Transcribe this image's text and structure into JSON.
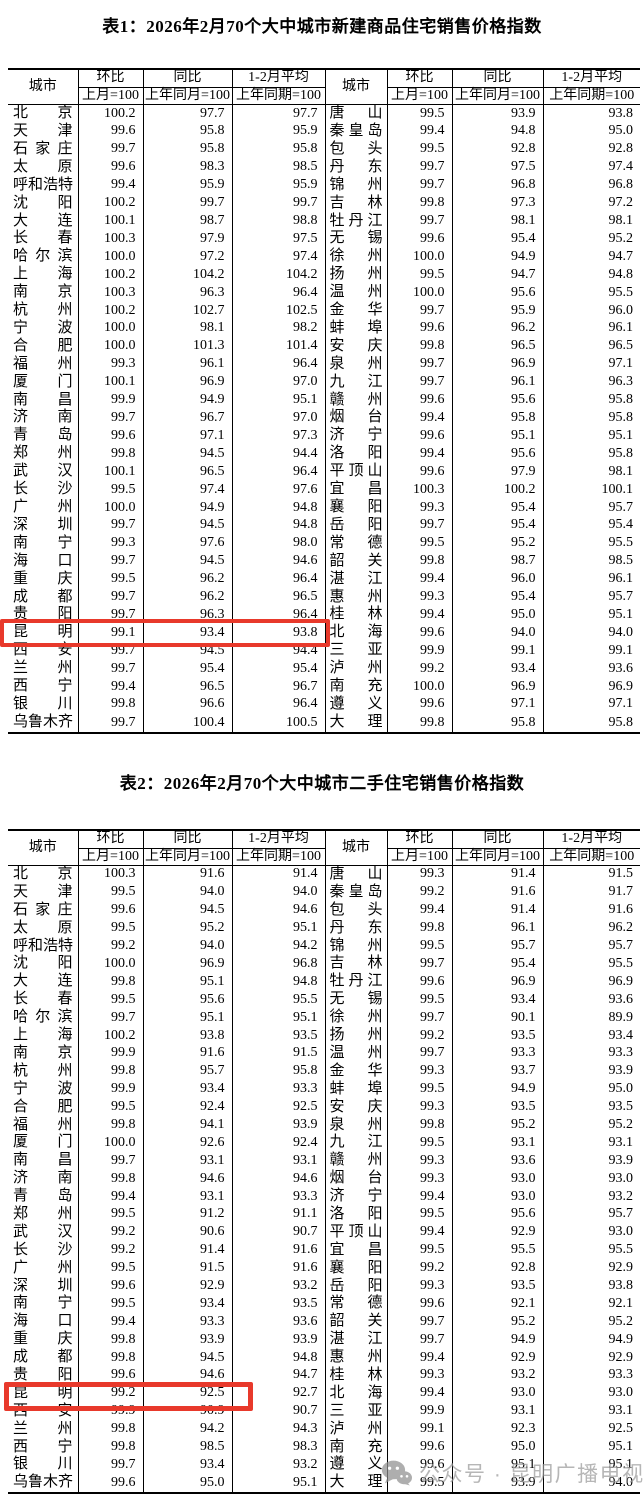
{
  "headers": {
    "city": "城市",
    "mom": "环比",
    "mom_base": "上月=100",
    "yoy": "同比",
    "yoy_base": "上年同月=100",
    "avg": "1-2月平均",
    "avg_base": "上年同期=100"
  },
  "table1": {
    "title": "表1：2026年2月70个大中城市新建商品住宅销售价格指数",
    "highlight_city": "昆明",
    "rows_left": [
      [
        "北京",
        "100.2",
        "97.7",
        "97.7"
      ],
      [
        "天津",
        "99.6",
        "95.8",
        "95.9"
      ],
      [
        "石家庄",
        "99.7",
        "95.8",
        "95.8"
      ],
      [
        "太原",
        "99.6",
        "98.3",
        "98.5"
      ],
      [
        "呼和浩特",
        "99.4",
        "95.9",
        "95.9"
      ],
      [
        "沈阳",
        "100.2",
        "99.7",
        "99.7"
      ],
      [
        "大连",
        "100.1",
        "98.7",
        "98.8"
      ],
      [
        "长春",
        "100.3",
        "97.9",
        "97.5"
      ],
      [
        "哈尔滨",
        "100.0",
        "97.2",
        "97.4"
      ],
      [
        "上海",
        "100.2",
        "104.2",
        "104.2"
      ],
      [
        "南京",
        "100.3",
        "96.3",
        "96.4"
      ],
      [
        "杭州",
        "100.2",
        "102.7",
        "102.5"
      ],
      [
        "宁波",
        "100.0",
        "98.1",
        "98.2"
      ],
      [
        "合肥",
        "100.0",
        "101.3",
        "101.4"
      ],
      [
        "福州",
        "99.3",
        "96.1",
        "96.4"
      ],
      [
        "厦门",
        "100.1",
        "96.9",
        "97.0"
      ],
      [
        "南昌",
        "99.9",
        "94.9",
        "95.1"
      ],
      [
        "济南",
        "99.7",
        "96.7",
        "97.0"
      ],
      [
        "青岛",
        "99.6",
        "97.1",
        "97.3"
      ],
      [
        "郑州",
        "99.8",
        "94.5",
        "94.4"
      ],
      [
        "武汉",
        "100.1",
        "96.5",
        "96.4"
      ],
      [
        "长沙",
        "99.5",
        "97.4",
        "97.6"
      ],
      [
        "广州",
        "100.0",
        "94.9",
        "94.8"
      ],
      [
        "深圳",
        "99.7",
        "94.5",
        "94.8"
      ],
      [
        "南宁",
        "99.3",
        "97.6",
        "98.0"
      ],
      [
        "海口",
        "99.7",
        "94.5",
        "94.6"
      ],
      [
        "重庆",
        "99.5",
        "96.2",
        "96.4"
      ],
      [
        "成都",
        "99.7",
        "96.2",
        "96.5"
      ],
      [
        "贵阳",
        "99.7",
        "96.3",
        "96.4"
      ],
      [
        "昆明",
        "99.1",
        "93.4",
        "93.8"
      ],
      [
        "西安",
        "99.7",
        "94.5",
        "94.4"
      ],
      [
        "兰州",
        "99.7",
        "95.4",
        "95.4"
      ],
      [
        "西宁",
        "99.4",
        "96.5",
        "96.7"
      ],
      [
        "银川",
        "99.8",
        "96.6",
        "96.4"
      ],
      [
        "乌鲁木齐",
        "99.7",
        "100.4",
        "100.5"
      ]
    ],
    "rows_right": [
      [
        "唐山",
        "99.5",
        "93.9",
        "93.8"
      ],
      [
        "秦皇岛",
        "99.4",
        "94.8",
        "95.0"
      ],
      [
        "包头",
        "99.5",
        "92.8",
        "92.8"
      ],
      [
        "丹东",
        "99.7",
        "97.5",
        "97.4"
      ],
      [
        "锦州",
        "99.7",
        "96.8",
        "96.8"
      ],
      [
        "吉林",
        "99.8",
        "97.3",
        "97.2"
      ],
      [
        "牡丹江",
        "99.7",
        "98.1",
        "98.1"
      ],
      [
        "无锡",
        "99.6",
        "95.4",
        "95.2"
      ],
      [
        "徐州",
        "100.0",
        "94.9",
        "94.7"
      ],
      [
        "扬州",
        "99.5",
        "94.7",
        "94.8"
      ],
      [
        "温州",
        "100.0",
        "95.6",
        "95.5"
      ],
      [
        "金华",
        "99.7",
        "95.9",
        "96.0"
      ],
      [
        "蚌埠",
        "99.6",
        "96.2",
        "96.1"
      ],
      [
        "安庆",
        "99.8",
        "96.5",
        "96.5"
      ],
      [
        "泉州",
        "99.7",
        "96.9",
        "97.1"
      ],
      [
        "九江",
        "99.7",
        "96.1",
        "96.3"
      ],
      [
        "赣州",
        "99.6",
        "95.6",
        "95.8"
      ],
      [
        "烟台",
        "99.4",
        "95.8",
        "95.8"
      ],
      [
        "济宁",
        "99.6",
        "95.1",
        "95.1"
      ],
      [
        "洛阳",
        "99.4",
        "95.6",
        "95.8"
      ],
      [
        "平顶山",
        "99.6",
        "97.9",
        "98.1"
      ],
      [
        "宜昌",
        "100.3",
        "100.2",
        "100.1"
      ],
      [
        "襄阳",
        "99.3",
        "95.4",
        "95.7"
      ],
      [
        "岳阳",
        "99.7",
        "95.4",
        "95.4"
      ],
      [
        "常德",
        "99.5",
        "95.2",
        "95.5"
      ],
      [
        "韶关",
        "99.8",
        "98.7",
        "98.5"
      ],
      [
        "湛江",
        "99.4",
        "96.0",
        "96.1"
      ],
      [
        "惠州",
        "99.3",
        "95.4",
        "95.7"
      ],
      [
        "桂林",
        "99.4",
        "95.0",
        "95.1"
      ],
      [
        "北海",
        "99.6",
        "94.0",
        "94.0"
      ],
      [
        "三亚",
        "99.9",
        "99.1",
        "99.1"
      ],
      [
        "泸州",
        "99.2",
        "93.4",
        "93.6"
      ],
      [
        "南充",
        "100.0",
        "96.9",
        "96.9"
      ],
      [
        "遵义",
        "99.6",
        "97.1",
        "97.1"
      ],
      [
        "大理",
        "99.8",
        "95.8",
        "95.8"
      ]
    ]
  },
  "table2": {
    "title": "表2：2026年2月70个大中城市二手住宅销售价格指数",
    "highlight_city": "昆明",
    "rows_left": [
      [
        "北京",
        "100.3",
        "91.6",
        "91.4"
      ],
      [
        "天津",
        "99.5",
        "94.0",
        "94.0"
      ],
      [
        "石家庄",
        "99.6",
        "94.5",
        "94.6"
      ],
      [
        "太原",
        "99.5",
        "95.2",
        "95.1"
      ],
      [
        "呼和浩特",
        "99.2",
        "94.0",
        "94.2"
      ],
      [
        "沈阳",
        "100.0",
        "96.9",
        "96.8"
      ],
      [
        "大连",
        "99.8",
        "95.1",
        "94.8"
      ],
      [
        "长春",
        "99.5",
        "95.6",
        "95.5"
      ],
      [
        "哈尔滨",
        "99.7",
        "95.1",
        "95.1"
      ],
      [
        "上海",
        "100.2",
        "93.8",
        "93.5"
      ],
      [
        "南京",
        "99.9",
        "91.6",
        "91.5"
      ],
      [
        "杭州",
        "99.8",
        "95.7",
        "95.8"
      ],
      [
        "宁波",
        "99.9",
        "93.4",
        "93.3"
      ],
      [
        "合肥",
        "99.5",
        "92.4",
        "92.5"
      ],
      [
        "福州",
        "99.8",
        "94.1",
        "93.9"
      ],
      [
        "厦门",
        "100.0",
        "92.6",
        "92.4"
      ],
      [
        "南昌",
        "99.7",
        "93.1",
        "93.1"
      ],
      [
        "济南",
        "99.8",
        "94.6",
        "94.6"
      ],
      [
        "青岛",
        "99.4",
        "93.1",
        "93.3"
      ],
      [
        "郑州",
        "99.5",
        "91.2",
        "91.1"
      ],
      [
        "武汉",
        "99.2",
        "90.6",
        "90.7"
      ],
      [
        "长沙",
        "99.2",
        "91.4",
        "91.6"
      ],
      [
        "广州",
        "99.5",
        "91.5",
        "91.6"
      ],
      [
        "深圳",
        "99.6",
        "92.9",
        "93.2"
      ],
      [
        "南宁",
        "99.5",
        "93.4",
        "93.5"
      ],
      [
        "海口",
        "99.4",
        "93.3",
        "93.6"
      ],
      [
        "重庆",
        "99.8",
        "93.9",
        "93.9"
      ],
      [
        "成都",
        "99.8",
        "94.5",
        "94.8"
      ],
      [
        "贵阳",
        "99.6",
        "94.6",
        "94.7"
      ],
      [
        "昆明",
        "99.2",
        "92.5",
        "92.7"
      ],
      [
        "西安",
        "99.9",
        "90.9",
        "90.7"
      ],
      [
        "兰州",
        "99.8",
        "94.2",
        "94.3"
      ],
      [
        "西宁",
        "99.8",
        "98.5",
        "98.3"
      ],
      [
        "银川",
        "99.7",
        "93.4",
        "93.2"
      ],
      [
        "乌鲁木齐",
        "99.6",
        "95.0",
        "95.1"
      ]
    ],
    "rows_right": [
      [
        "唐山",
        "99.3",
        "91.4",
        "91.5"
      ],
      [
        "秦皇岛",
        "99.2",
        "91.6",
        "91.7"
      ],
      [
        "包头",
        "99.4",
        "91.4",
        "91.6"
      ],
      [
        "丹东",
        "99.8",
        "96.1",
        "96.2"
      ],
      [
        "锦州",
        "99.5",
        "95.7",
        "95.7"
      ],
      [
        "吉林",
        "99.7",
        "95.4",
        "95.5"
      ],
      [
        "牡丹江",
        "99.6",
        "96.9",
        "96.9"
      ],
      [
        "无锡",
        "99.5",
        "93.4",
        "93.6"
      ],
      [
        "徐州",
        "99.7",
        "90.1",
        "89.9"
      ],
      [
        "扬州",
        "99.2",
        "93.5",
        "93.4"
      ],
      [
        "温州",
        "99.7",
        "93.3",
        "93.3"
      ],
      [
        "金华",
        "99.3",
        "93.7",
        "93.9"
      ],
      [
        "蚌埠",
        "99.5",
        "94.9",
        "95.0"
      ],
      [
        "安庆",
        "99.3",
        "93.5",
        "93.5"
      ],
      [
        "泉州",
        "99.8",
        "95.2",
        "95.2"
      ],
      [
        "九江",
        "99.5",
        "93.1",
        "93.1"
      ],
      [
        "赣州",
        "99.3",
        "93.6",
        "93.9"
      ],
      [
        "烟台",
        "99.3",
        "93.0",
        "93.0"
      ],
      [
        "济宁",
        "99.4",
        "93.0",
        "93.2"
      ],
      [
        "洛阳",
        "99.5",
        "95.6",
        "95.7"
      ],
      [
        "平顶山",
        "99.4",
        "92.9",
        "93.0"
      ],
      [
        "宜昌",
        "99.5",
        "95.5",
        "95.5"
      ],
      [
        "襄阳",
        "99.2",
        "92.8",
        "92.9"
      ],
      [
        "岳阳",
        "99.3",
        "93.5",
        "93.8"
      ],
      [
        "常德",
        "99.6",
        "92.1",
        "92.1"
      ],
      [
        "韶关",
        "99.7",
        "95.2",
        "95.2"
      ],
      [
        "湛江",
        "99.7",
        "94.9",
        "94.9"
      ],
      [
        "惠州",
        "99.4",
        "92.9",
        "92.9"
      ],
      [
        "桂林",
        "99.3",
        "93.2",
        "93.3"
      ],
      [
        "北海",
        "99.4",
        "93.0",
        "93.0"
      ],
      [
        "三亚",
        "99.9",
        "93.1",
        "93.1"
      ],
      [
        "泸州",
        "99.1",
        "92.3",
        "92.5"
      ],
      [
        "南充",
        "99.6",
        "95.0",
        "95.1"
      ],
      [
        "遵义",
        "99.6",
        "95.1",
        "95.1"
      ],
      [
        "大理",
        "99.5",
        "93.9",
        "94.0"
      ]
    ]
  },
  "watermark": {
    "icon": "wechat-icon",
    "text": "公众号 · 昆明广播电视台"
  },
  "colors": {
    "highlight_box": "#e8392b",
    "watermark_gray": "#9a9a9a"
  }
}
